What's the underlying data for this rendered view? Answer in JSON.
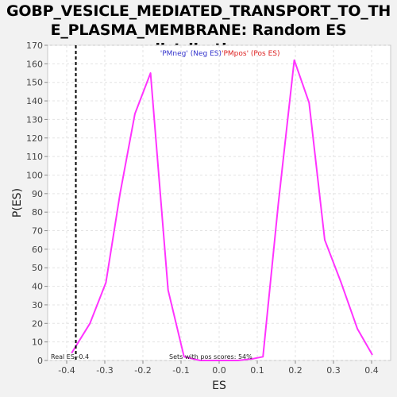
{
  "chart_data": {
    "type": "line",
    "title": "GOBP_VESICLE_MEDIATED_TRANSPORT_TO_THE_PLASMA_MEMBRANE: Random ES distribution",
    "title_lines": [
      "GOBP_VESICLE_MEDIATED_TRANSPORT_TO_TH",
      "E_PLASMA_MEMBRANE: Random ES distribution"
    ],
    "xlabel": "ES",
    "ylabel": "P(ES)",
    "xlim": [
      -0.45,
      0.45
    ],
    "ylim": [
      0,
      170
    ],
    "x_ticks": [
      "-0.4",
      "-0.3",
      "-0.2",
      "-0.1",
      "0.0",
      "0.1",
      "0.2",
      "0.3",
      "0.4"
    ],
    "y_ticks": [
      "0",
      "10",
      "20",
      "30",
      "40",
      "50",
      "60",
      "70",
      "80",
      "90",
      "100",
      "110",
      "120",
      "130",
      "140",
      "150",
      "160",
      "170"
    ],
    "grid": true,
    "series": [
      {
        "color": "#ff33ff",
        "x": [
          -0.387,
          -0.339,
          -0.297,
          -0.26,
          -0.221,
          -0.18,
          -0.134,
          -0.092,
          -0.05,
          0,
          0.05,
          0.09,
          0.115,
          0.155,
          0.197,
          0.236,
          0.277,
          0.32,
          0.363,
          0.402
        ],
        "y": [
          4,
          20,
          42,
          90,
          133,
          155,
          38,
          2,
          0,
          0,
          0,
          1,
          2,
          84,
          162,
          139,
          65,
          42,
          17,
          3
        ]
      }
    ],
    "real_es_line": {
      "x": -0.376,
      "color": "#000000"
    },
    "legend": {
      "placement": "top-center",
      "neg_label": "'PMneg' (Neg ES)",
      "pos_label": "'PMpos' (Pos ES)",
      "neg_color": "#3333cc",
      "pos_color": "#dd2222"
    },
    "annotations": {
      "real_es": "Real ES -0.4",
      "pos_scores": "Sets with pos scores: 54%"
    }
  }
}
